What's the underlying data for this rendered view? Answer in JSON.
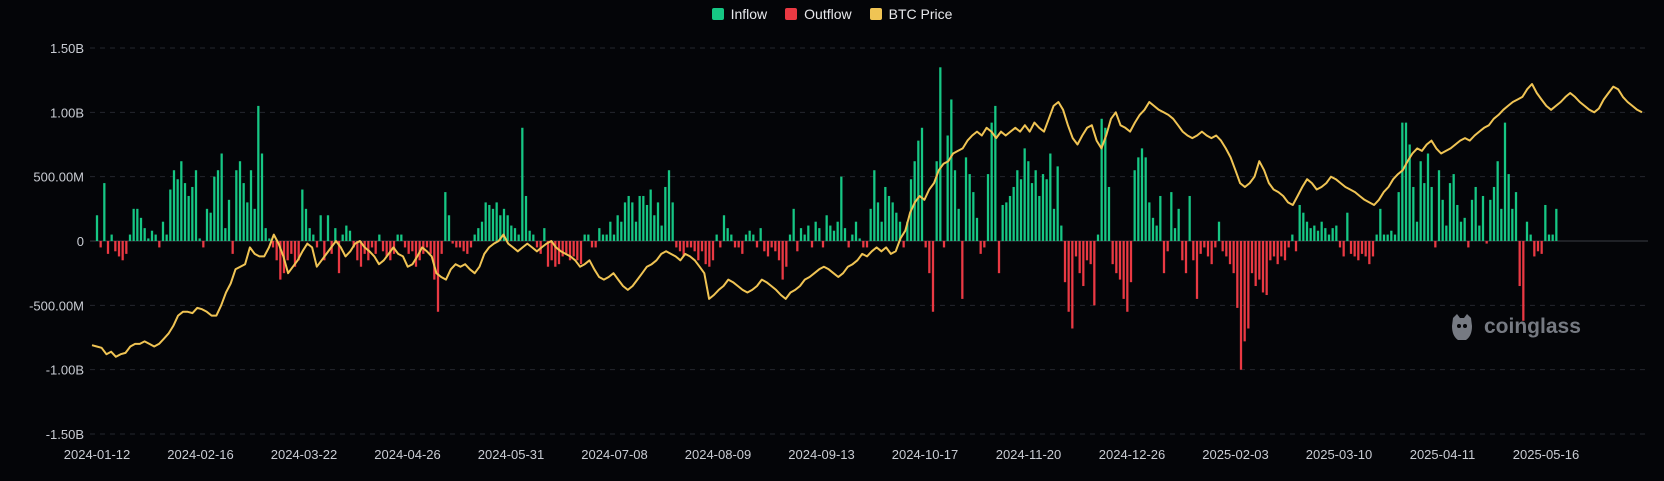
{
  "legend": {
    "items": [
      {
        "label": "Inflow",
        "color": "#16c784"
      },
      {
        "label": "Outflow",
        "color": "#ea3943"
      },
      {
        "label": "BTC Price",
        "color": "#f0c454"
      }
    ]
  },
  "watermark": {
    "text": "coinglass",
    "icon": "coinglass-logo-icon"
  },
  "chart_data": {
    "type": "bar",
    "title": "",
    "y_ticks": [
      {
        "value": 1.5,
        "label": "1.50B"
      },
      {
        "value": 1.0,
        "label": "1.00B"
      },
      {
        "value": 0.5,
        "label": "500.00M"
      },
      {
        "value": 0,
        "label": "0"
      },
      {
        "value": -0.5,
        "label": "-500.00M"
      },
      {
        "value": -1.0,
        "label": "-1.00B"
      },
      {
        "value": -1.5,
        "label": "-1.50B"
      }
    ],
    "ylim": [
      -1.5,
      1.5
    ],
    "y_unit": "B",
    "x_ticks": [
      "2024-01-12",
      "2024-02-16",
      "2024-03-22",
      "2024-04-26",
      "2024-05-31",
      "2024-07-08",
      "2024-08-09",
      "2024-09-13",
      "2024-10-17",
      "2024-11-20",
      "2024-12-26",
      "2025-02-03",
      "2025-03-10",
      "2025-04-11",
      "2025-05-16"
    ],
    "grid": true,
    "legend_position": "top-center",
    "series_colors": {
      "Inflow": "#16c784",
      "Outflow": "#ea3943",
      "BTC Price": "#f0c454"
    },
    "flows_B": [
      0.2,
      -0.05,
      0.45,
      -0.1,
      0.05,
      -0.08,
      -0.12,
      -0.15,
      -0.1,
      0.05,
      0.25,
      0.25,
      0.18,
      0.1,
      0.02,
      0.08,
      0.05,
      -0.05,
      0.15,
      0.05,
      0.4,
      0.55,
      0.48,
      0.62,
      0.45,
      0.35,
      0.42,
      0.55,
      0.02,
      -0.05,
      0.25,
      0.22,
      0.5,
      0.55,
      0.68,
      0.1,
      0.32,
      -0.1,
      0.55,
      0.62,
      0.45,
      0.3,
      0.55,
      0.25,
      1.05,
      0.68,
      0.1,
      0.02,
      -0.05,
      -0.15,
      -0.3,
      -0.25,
      -0.15,
      -0.1,
      -0.2,
      -0.15,
      0.4,
      0.25,
      0.1,
      0.05,
      -0.05,
      0.2,
      -0.15,
      0.2,
      -0.1,
      0.1,
      -0.25,
      0.05,
      0.12,
      0.08,
      -0.05,
      -0.15,
      -0.2,
      -0.1,
      -0.15,
      -0.05,
      -0.1,
      0.05,
      -0.08,
      -0.12,
      -0.15,
      -0.1,
      0.05,
      0.05,
      -0.05,
      -0.1,
      -0.08,
      -0.2,
      -0.15,
      -0.1,
      -0.05,
      -0.1,
      -0.3,
      -0.55,
      -0.1,
      0.38,
      0.2,
      -0.02,
      -0.05,
      -0.05,
      -0.08,
      -0.1,
      -0.05,
      0.05,
      0.1,
      0.15,
      0.3,
      0.28,
      0.25,
      0.3,
      0.2,
      0.25,
      0.2,
      0.12,
      0.1,
      0.05,
      0.88,
      0.35,
      0.08,
      0.05,
      -0.05,
      -0.1,
      0.1,
      -0.2,
      -0.15,
      -0.2,
      -0.18,
      -0.12,
      -0.1,
      -0.15,
      -0.12,
      -0.15,
      -0.18,
      0.05,
      0.05,
      -0.05,
      -0.05,
      0.1,
      0.05,
      0.05,
      0.15,
      0.05,
      0.2,
      0.15,
      0.3,
      0.35,
      0.3,
      0.15,
      0.35,
      0.35,
      0.28,
      0.4,
      0.2,
      0.3,
      0.12,
      0.42,
      0.55,
      0.3,
      -0.05,
      -0.08,
      -0.12,
      -0.05,
      -0.05,
      -0.08,
      -0.15,
      -0.08,
      -0.18,
      -0.2,
      -0.15,
      0.05,
      -0.05,
      0.2,
      0.1,
      0.05,
      -0.05,
      -0.05,
      -0.1,
      0.05,
      0.08,
      0.05,
      -0.05,
      0.1,
      -0.08,
      -0.12,
      -0.05,
      -0.08,
      -0.15,
      -0.3,
      -0.2,
      0.05,
      0.25,
      -0.08,
      0.1,
      0.05,
      0.12,
      -0.05,
      0.15,
      0.1,
      -0.05,
      0.2,
      0.12,
      0.08,
      0.15,
      0.5,
      0.1,
      -0.05,
      0.05,
      0.15,
      0.02,
      -0.05,
      -0.05,
      0.25,
      0.55,
      0.3,
      0.15,
      0.42,
      0.35,
      0.3,
      0.22,
      0.15,
      -0.05,
      0.15,
      0.48,
      0.62,
      0.78,
      0.88,
      -0.05,
      -0.25,
      -0.55,
      0.62,
      1.35,
      -0.05,
      0.82,
      1.1,
      0.55,
      0.25,
      -0.45,
      0.65,
      0.52,
      0.38,
      0.18,
      -0.1,
      -0.05,
      0.52,
      0.92,
      1.05,
      -0.25,
      0.28,
      0.3,
      0.35,
      0.42,
      0.55,
      0.48,
      0.72,
      0.62,
      0.45,
      0.55,
      0.35,
      0.52,
      0.48,
      0.68,
      0.25,
      0.58,
      0.12,
      -0.32,
      -0.55,
      -0.68,
      -0.12,
      -0.25,
      -0.35,
      -0.15,
      -0.18,
      -0.5,
      0.05,
      0.95,
      0.88,
      0.42,
      -0.18,
      -0.25,
      -0.3,
      -0.45,
      -0.55,
      -0.32,
      0.55,
      0.65,
      0.72,
      0.65,
      0.3,
      0.18,
      0.12,
      0.35,
      -0.25,
      -0.08,
      0.38,
      0.1,
      0.25,
      -0.15,
      -0.25,
      0.35,
      -0.15,
      -0.45,
      -0.1,
      -0.05,
      -0.12,
      -0.18,
      -0.05,
      0.15,
      -0.08,
      -0.12,
      -0.18,
      -0.25,
      -0.52,
      -1.0,
      -0.78,
      -0.68,
      -0.25,
      -0.35,
      -0.3,
      -0.4,
      -0.42,
      -0.15,
      -0.12,
      -0.18,
      -0.12,
      -0.15,
      -0.05,
      0.05,
      -0.08,
      0.28,
      0.22,
      0.15,
      0.1,
      0.12,
      0.08,
      0.15,
      0.1,
      0.05,
      0.1,
      0.12,
      -0.05,
      -0.12,
      0.22,
      -0.1,
      -0.12,
      -0.15,
      -0.1,
      -0.12,
      -0.18,
      -0.12,
      0.05,
      0.25,
      0.05,
      0.05,
      0.08,
      0.05,
      0.38,
      0.92,
      0.92,
      0.75,
      0.42,
      0.15,
      0.62,
      0.45,
      0.68,
      0.42,
      -0.05,
      0.55,
      0.32,
      0.12,
      0.45,
      0.52,
      0.28,
      0.15,
      0.18,
      -0.05,
      0.32,
      0.42,
      0.12,
      0.35,
      -0.02,
      0.32,
      0.42,
      0.62,
      0.25,
      0.92,
      0.52,
      0.25,
      0.38,
      -0.35,
      -0.62,
      0.15,
      0.05,
      -0.12,
      -0.08,
      -0.1,
      0.28,
      0.05,
      0.05,
      0.25
    ],
    "btc_price_line": [
      -0.81,
      -0.82,
      -0.83,
      -0.88,
      -0.86,
      -0.9,
      -0.88,
      -0.87,
      -0.82,
      -0.8,
      -0.8,
      -0.78,
      -0.8,
      -0.82,
      -0.8,
      -0.76,
      -0.72,
      -0.66,
      -0.58,
      -0.55,
      -0.55,
      -0.56,
      -0.52,
      -0.53,
      -0.55,
      -0.58,
      -0.58,
      -0.5,
      -0.4,
      -0.33,
      -0.22,
      -0.2,
      -0.18,
      -0.05,
      -0.1,
      -0.12,
      -0.12,
      -0.05,
      0.05,
      -0.02,
      -0.12,
      -0.25,
      -0.2,
      -0.15,
      -0.08,
      -0.02,
      -0.05,
      -0.2,
      -0.15,
      -0.1,
      -0.05,
      0.0,
      -0.05,
      -0.12,
      -0.08,
      -0.02,
      0.0,
      -0.05,
      -0.08,
      -0.12,
      -0.18,
      -0.15,
      -0.1,
      -0.05,
      -0.1,
      -0.12,
      -0.2,
      -0.18,
      -0.12,
      -0.05,
      -0.08,
      -0.12,
      -0.25,
      -0.28,
      -0.3,
      -0.22,
      -0.18,
      -0.2,
      -0.18,
      -0.22,
      -0.25,
      -0.2,
      -0.1,
      -0.05,
      -0.02,
      0.0,
      0.05,
      -0.02,
      -0.05,
      -0.08,
      -0.05,
      -0.02,
      -0.05,
      -0.08,
      -0.05,
      -0.02,
      0.0,
      -0.05,
      -0.08,
      -0.1,
      -0.12,
      -0.15,
      -0.2,
      -0.18,
      -0.15,
      -0.22,
      -0.28,
      -0.3,
      -0.28,
      -0.25,
      -0.3,
      -0.35,
      -0.38,
      -0.35,
      -0.3,
      -0.25,
      -0.2,
      -0.18,
      -0.15,
      -0.1,
      -0.08,
      -0.1,
      -0.12,
      -0.15,
      -0.1,
      -0.12,
      -0.15,
      -0.2,
      -0.25,
      -0.45,
      -0.42,
      -0.38,
      -0.35,
      -0.3,
      -0.32,
      -0.35,
      -0.38,
      -0.4,
      -0.38,
      -0.35,
      -0.3,
      -0.32,
      -0.35,
      -0.38,
      -0.42,
      -0.45,
      -0.4,
      -0.38,
      -0.35,
      -0.3,
      -0.28,
      -0.25,
      -0.22,
      -0.2,
      -0.22,
      -0.25,
      -0.28,
      -0.25,
      -0.2,
      -0.18,
      -0.15,
      -0.1,
      -0.12,
      -0.08,
      -0.05,
      -0.08,
      -0.05,
      -0.1,
      -0.08,
      0.02,
      0.08,
      0.22,
      0.3,
      0.35,
      0.32,
      0.4,
      0.45,
      0.55,
      0.6,
      0.62,
      0.68,
      0.7,
      0.72,
      0.78,
      0.82,
      0.85,
      0.82,
      0.88,
      0.85,
      0.8,
      0.85,
      0.82,
      0.85,
      0.88,
      0.85,
      0.9,
      0.85,
      0.92,
      0.88,
      0.85,
      0.95,
      1.05,
      1.08,
      1.02,
      0.9,
      0.8,
      0.75,
      0.82,
      0.88,
      0.9,
      0.78,
      0.72,
      0.82,
      0.95,
      1.0,
      0.9,
      0.88,
      0.85,
      0.92,
      0.98,
      1.02,
      1.08,
      1.05,
      1.02,
      1.0,
      0.98,
      0.95,
      0.9,
      0.85,
      0.82,
      0.8,
      0.82,
      0.85,
      0.82,
      0.8,
      0.82,
      0.78,
      0.72,
      0.65,
      0.55,
      0.45,
      0.42,
      0.45,
      0.5,
      0.62,
      0.55,
      0.45,
      0.4,
      0.38,
      0.35,
      0.3,
      0.28,
      0.35,
      0.42,
      0.48,
      0.45,
      0.4,
      0.42,
      0.45,
      0.5,
      0.48,
      0.45,
      0.42,
      0.4,
      0.38,
      0.35,
      0.32,
      0.3,
      0.28,
      0.32,
      0.38,
      0.42,
      0.48,
      0.52,
      0.55,
      0.62,
      0.68,
      0.72,
      0.7,
      0.75,
      0.78,
      0.72,
      0.68,
      0.7,
      0.72,
      0.75,
      0.78,
      0.8,
      0.78,
      0.82,
      0.85,
      0.88,
      0.9,
      0.95,
      0.98,
      1.02,
      1.05,
      1.08,
      1.1,
      1.12,
      1.18,
      1.22,
      1.15,
      1.1,
      1.05,
      1.02,
      1.05,
      1.08,
      1.12,
      1.15,
      1.12,
      1.08,
      1.05,
      1.02,
      1.0,
      1.03,
      1.1,
      1.15,
      1.2,
      1.18,
      1.12,
      1.08,
      1.05,
      1.02,
      1.0
    ]
  }
}
